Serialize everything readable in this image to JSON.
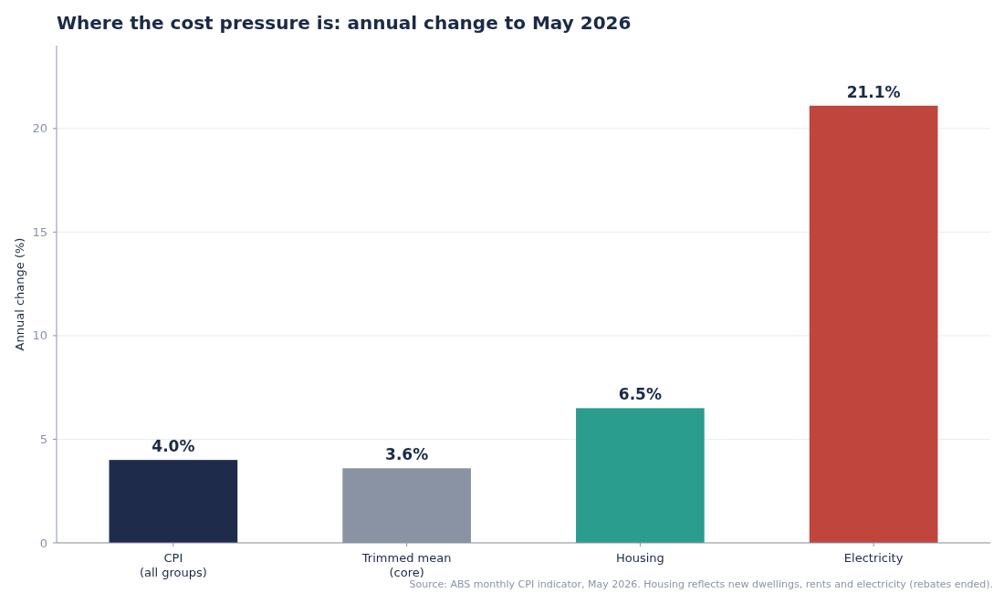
{
  "chart_data": {
    "type": "bar",
    "title": "Where the cost pressure is: annual change to May 2026",
    "ylabel": "Annual change (%)",
    "categories": [
      "CPI\n(all groups)",
      "Trimmed mean\n(core)",
      "Housing",
      "Electricity"
    ],
    "values": [
      4.0,
      3.6,
      6.5,
      21.1
    ],
    "colors": [
      "#1e2b4b",
      "#8a93a4",
      "#2a9d8f",
      "#c0453c"
    ],
    "value_labels": [
      "4.0%",
      "3.6%",
      "6.5%",
      "21.1%"
    ],
    "ylim": [
      0,
      24
    ],
    "yticks": [
      0,
      5,
      10,
      15,
      20
    ],
    "grid": "y",
    "annotations": [
      "Source: ABS monthly CPI indicator, May 2026. Housing reflects new dwellings, rents and electricity (rebates ended)."
    ]
  }
}
